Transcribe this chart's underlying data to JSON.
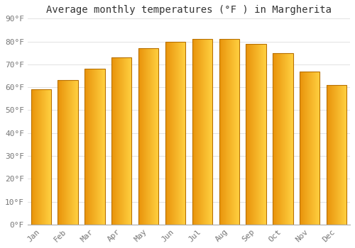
{
  "title": "Average monthly temperatures (°F ) in Margherita",
  "months": [
    "Jan",
    "Feb",
    "Mar",
    "Apr",
    "May",
    "Jun",
    "Jul",
    "Aug",
    "Sep",
    "Oct",
    "Nov",
    "Dec"
  ],
  "values": [
    59,
    63,
    68,
    73,
    77,
    80,
    81,
    81,
    79,
    75,
    67,
    61
  ],
  "bar_color_dark": "#E8920A",
  "bar_color_light": "#FFD040",
  "bar_edge_color": "#B87000",
  "background_color": "#FFFFFF",
  "grid_color": "#DDDDDD",
  "ylim": [
    0,
    90
  ],
  "yticks": [
    0,
    10,
    20,
    30,
    40,
    50,
    60,
    70,
    80,
    90
  ],
  "ytick_labels": [
    "0°F",
    "10°F",
    "20°F",
    "30°F",
    "40°F",
    "50°F",
    "60°F",
    "70°F",
    "80°F",
    "90°F"
  ],
  "title_fontsize": 10,
  "tick_fontsize": 8,
  "font_family": "monospace",
  "bar_width": 0.75
}
